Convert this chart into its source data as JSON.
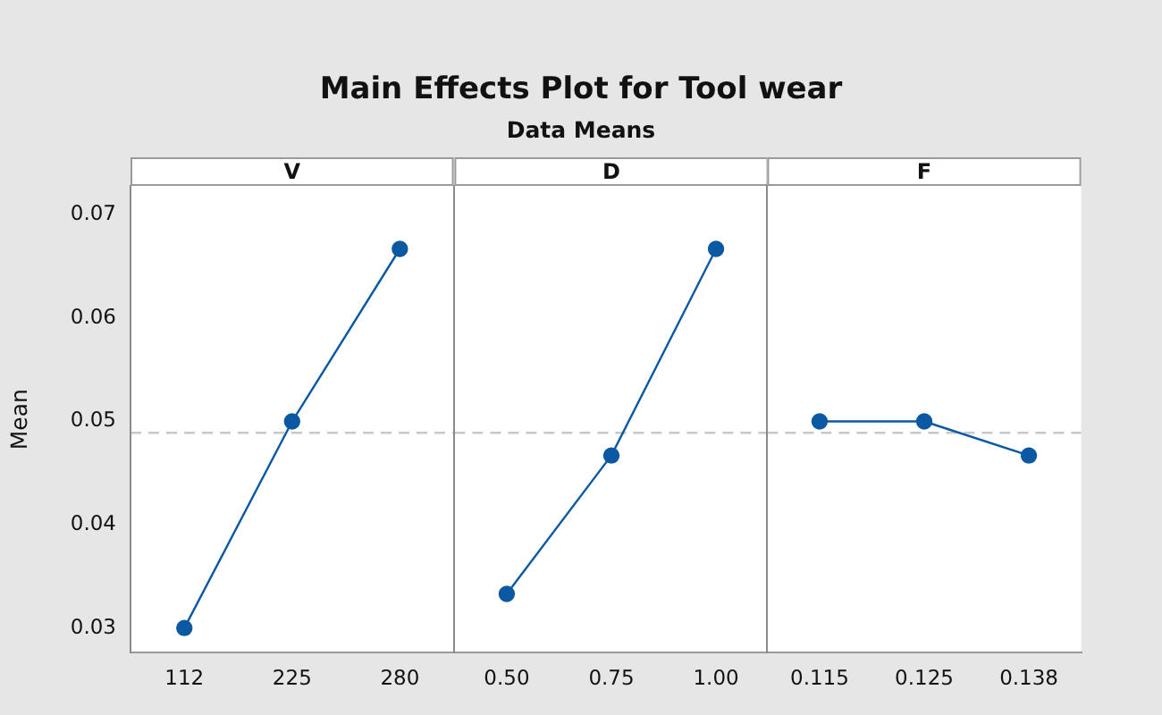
{
  "chart_data": [
    {
      "type": "line",
      "xlabel": "V",
      "ylabel": "Mean",
      "categories": [
        "112",
        "225",
        "280"
      ],
      "values": [
        0.03,
        0.05,
        0.0667
      ],
      "color": "#0b58a3",
      "ylim": [
        0.0276,
        0.0728
      ],
      "yticks": [
        0.03,
        0.04,
        0.05,
        0.06,
        0.07
      ],
      "ref_lines": [
        {
          "axis": "y",
          "value": 0.0489,
          "color": "#c8c8c8",
          "line_style": "dashed"
        }
      ],
      "marker": "circle",
      "line_style": "solid",
      "grid": false,
      "legend": false
    },
    {
      "type": "line",
      "title": "Main Effects Plot for Tool wear",
      "subtitle": "Data Means",
      "xlabel": "D",
      "categories": [
        "0.50",
        "0.75",
        "1.00"
      ],
      "values": [
        0.0333,
        0.0467,
        0.0667
      ],
      "color": "#0b58a3",
      "ylim": [
        0.0276,
        0.0728
      ],
      "yticks": [
        0.03,
        0.04,
        0.05,
        0.06,
        0.07
      ],
      "tick_labels": "x",
      "ref_lines": [
        {
          "axis": "y",
          "value": 0.0489,
          "color": "#c8c8c8",
          "line_style": "dashed"
        }
      ],
      "marker": "circle",
      "line_style": "solid",
      "grid": false,
      "legend": false
    },
    {
      "type": "line",
      "xlabel": "F",
      "categories": [
        "0.115",
        "0.125",
        "0.138"
      ],
      "values": [
        0.05,
        0.05,
        0.0467
      ],
      "color": "#0b58a3",
      "ylim": [
        0.0276,
        0.0728
      ],
      "yticks": [
        0.03,
        0.04,
        0.05,
        0.06,
        0.07
      ],
      "tick_labels": "x",
      "ref_lines": [
        {
          "axis": "y",
          "value": 0.0489,
          "color": "#c8c8c8",
          "line_style": "dashed"
        }
      ],
      "marker": "circle",
      "line_style": "solid",
      "grid": false,
      "legend": false
    }
  ]
}
